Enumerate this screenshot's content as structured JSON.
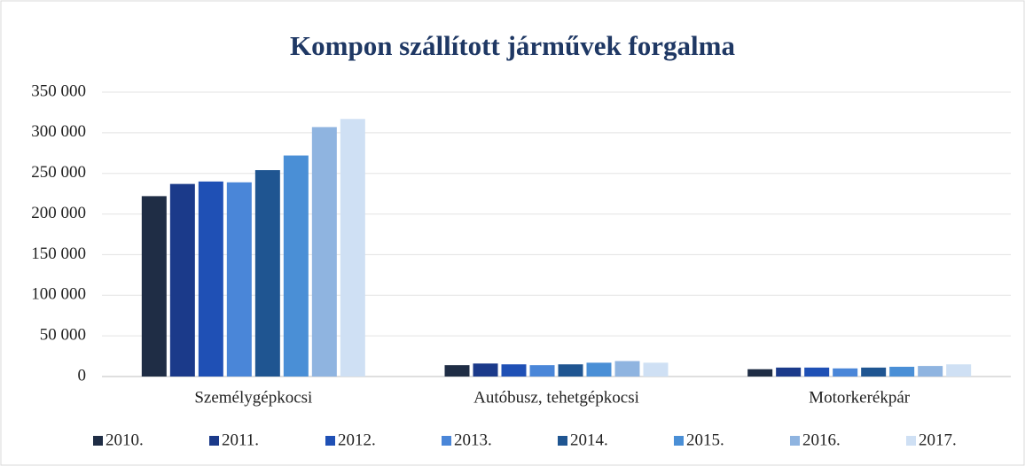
{
  "chart_data": {
    "type": "bar",
    "title": "Kompon szállított járművek forgalma",
    "categories": [
      "Személygépkocsi",
      "Autóbusz, tehetgépkocsi",
      "Motorkerékpár"
    ],
    "series": [
      {
        "name": "2010.",
        "color": "#1f2d45",
        "values": [
          222000,
          14000,
          9000
        ]
      },
      {
        "name": "2011.",
        "color": "#1b3a8a",
        "values": [
          237000,
          16000,
          11000
        ]
      },
      {
        "name": "2012.",
        "color": "#1f50b5",
        "values": [
          240000,
          15000,
          11000
        ]
      },
      {
        "name": "2013.",
        "color": "#4a86d8",
        "values": [
          239000,
          14000,
          10000
        ]
      },
      {
        "name": "2014.",
        "color": "#1f5591",
        "values": [
          254000,
          15000,
          11000
        ]
      },
      {
        "name": "2015.",
        "color": "#4a8fd6",
        "values": [
          272000,
          17000,
          12000
        ]
      },
      {
        "name": "2016.",
        "color": "#8fb4e0",
        "values": [
          307000,
          19000,
          13000
        ]
      },
      {
        "name": "2017.",
        "color": "#cfe0f4",
        "values": [
          317000,
          17000,
          15000
        ]
      }
    ],
    "ylim": [
      0,
      350000
    ],
    "yticks": [
      0,
      {
        "value": 50000,
        "label": "50 000"
      },
      {
        "value": 100000,
        "label": "100 000"
      },
      {
        "value": 150000,
        "label": "150 000"
      },
      {
        "value": 200000,
        "label": "200 000"
      },
      {
        "value": 250000,
        "label": "250 000"
      },
      {
        "value": 300000,
        "label": "300 000"
      },
      {
        "value": 350000,
        "label": "350 000"
      }
    ],
    "grid": true,
    "legend": "bottom"
  }
}
